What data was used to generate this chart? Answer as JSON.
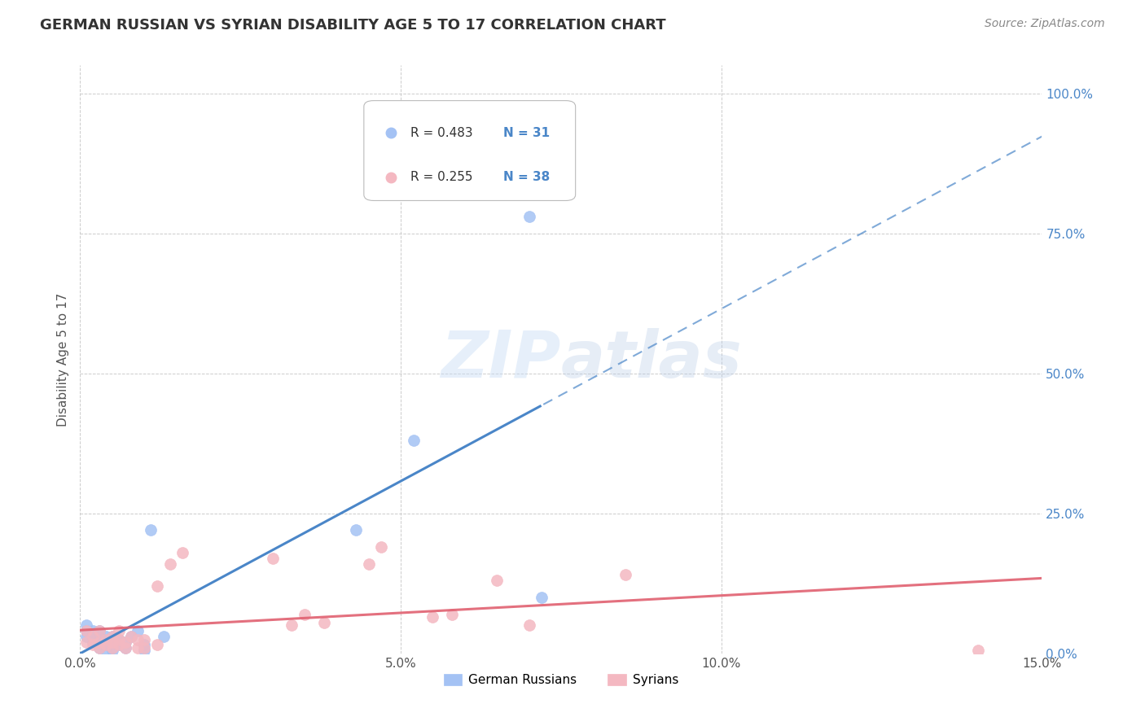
{
  "title": "GERMAN RUSSIAN VS SYRIAN DISABILITY AGE 5 TO 17 CORRELATION CHART",
  "source": "Source: ZipAtlas.com",
  "ylabel": "Disability Age 5 to 17",
  "xlim": [
    0.0,
    0.15
  ],
  "ylim": [
    0.0,
    1.05
  ],
  "xticks": [
    0.0,
    0.05,
    0.1,
    0.15
  ],
  "xticklabels": [
    "0.0%",
    "5.0%",
    "10.0%",
    "15.0%"
  ],
  "yticks_right": [
    0.0,
    0.25,
    0.5,
    0.75,
    1.0
  ],
  "yticklabels_right": [
    "0.0%",
    "25.0%",
    "50.0%",
    "75.0%",
    "100.0%"
  ],
  "german_russian_color": "#a4c2f4",
  "syrian_color": "#f4b8c1",
  "german_russian_line_color": "#4a86c8",
  "syrian_line_color": "#e06070",
  "legend_r1": "R = 0.483",
  "legend_n1": "N = 31",
  "legend_r2": "R = 0.255",
  "legend_n2": "N = 38",
  "legend_label1": "German Russians",
  "legend_label2": "Syrians",
  "watermark": "ZIPatlas",
  "german_russian_x": [
    0.001,
    0.001,
    0.001,
    0.002,
    0.002,
    0.002,
    0.003,
    0.003,
    0.003,
    0.003,
    0.004,
    0.004,
    0.004,
    0.005,
    0.005,
    0.005,
    0.005,
    0.006,
    0.006,
    0.007,
    0.007,
    0.008,
    0.009,
    0.01,
    0.01,
    0.011,
    0.013,
    0.043,
    0.052,
    0.07,
    0.072
  ],
  "german_russian_y": [
    0.03,
    0.04,
    0.05,
    0.02,
    0.03,
    0.04,
    0.01,
    0.02,
    0.03,
    0.04,
    0.005,
    0.015,
    0.03,
    0.005,
    0.01,
    0.02,
    0.03,
    0.015,
    0.025,
    0.01,
    0.02,
    0.03,
    0.04,
    0.005,
    0.015,
    0.22,
    0.03,
    0.22,
    0.38,
    0.78,
    0.1
  ],
  "syrian_x": [
    0.001,
    0.001,
    0.002,
    0.002,
    0.003,
    0.003,
    0.003,
    0.004,
    0.004,
    0.005,
    0.005,
    0.005,
    0.006,
    0.006,
    0.006,
    0.007,
    0.007,
    0.008,
    0.009,
    0.009,
    0.01,
    0.01,
    0.012,
    0.012,
    0.014,
    0.016,
    0.03,
    0.033,
    0.035,
    0.038,
    0.045,
    0.047,
    0.055,
    0.058,
    0.065,
    0.07,
    0.085,
    0.14
  ],
  "syrian_y": [
    0.02,
    0.04,
    0.015,
    0.03,
    0.01,
    0.02,
    0.04,
    0.015,
    0.025,
    0.01,
    0.02,
    0.03,
    0.015,
    0.025,
    0.04,
    0.01,
    0.02,
    0.03,
    0.01,
    0.025,
    0.01,
    0.025,
    0.015,
    0.12,
    0.16,
    0.18,
    0.17,
    0.05,
    0.07,
    0.055,
    0.16,
    0.19,
    0.065,
    0.07,
    0.13,
    0.05,
    0.14,
    0.005
  ],
  "background_color": "#ffffff",
  "grid_color": "#cccccc",
  "solid_line_max_x": 0.072,
  "right_tick_color": "#4a86c8"
}
